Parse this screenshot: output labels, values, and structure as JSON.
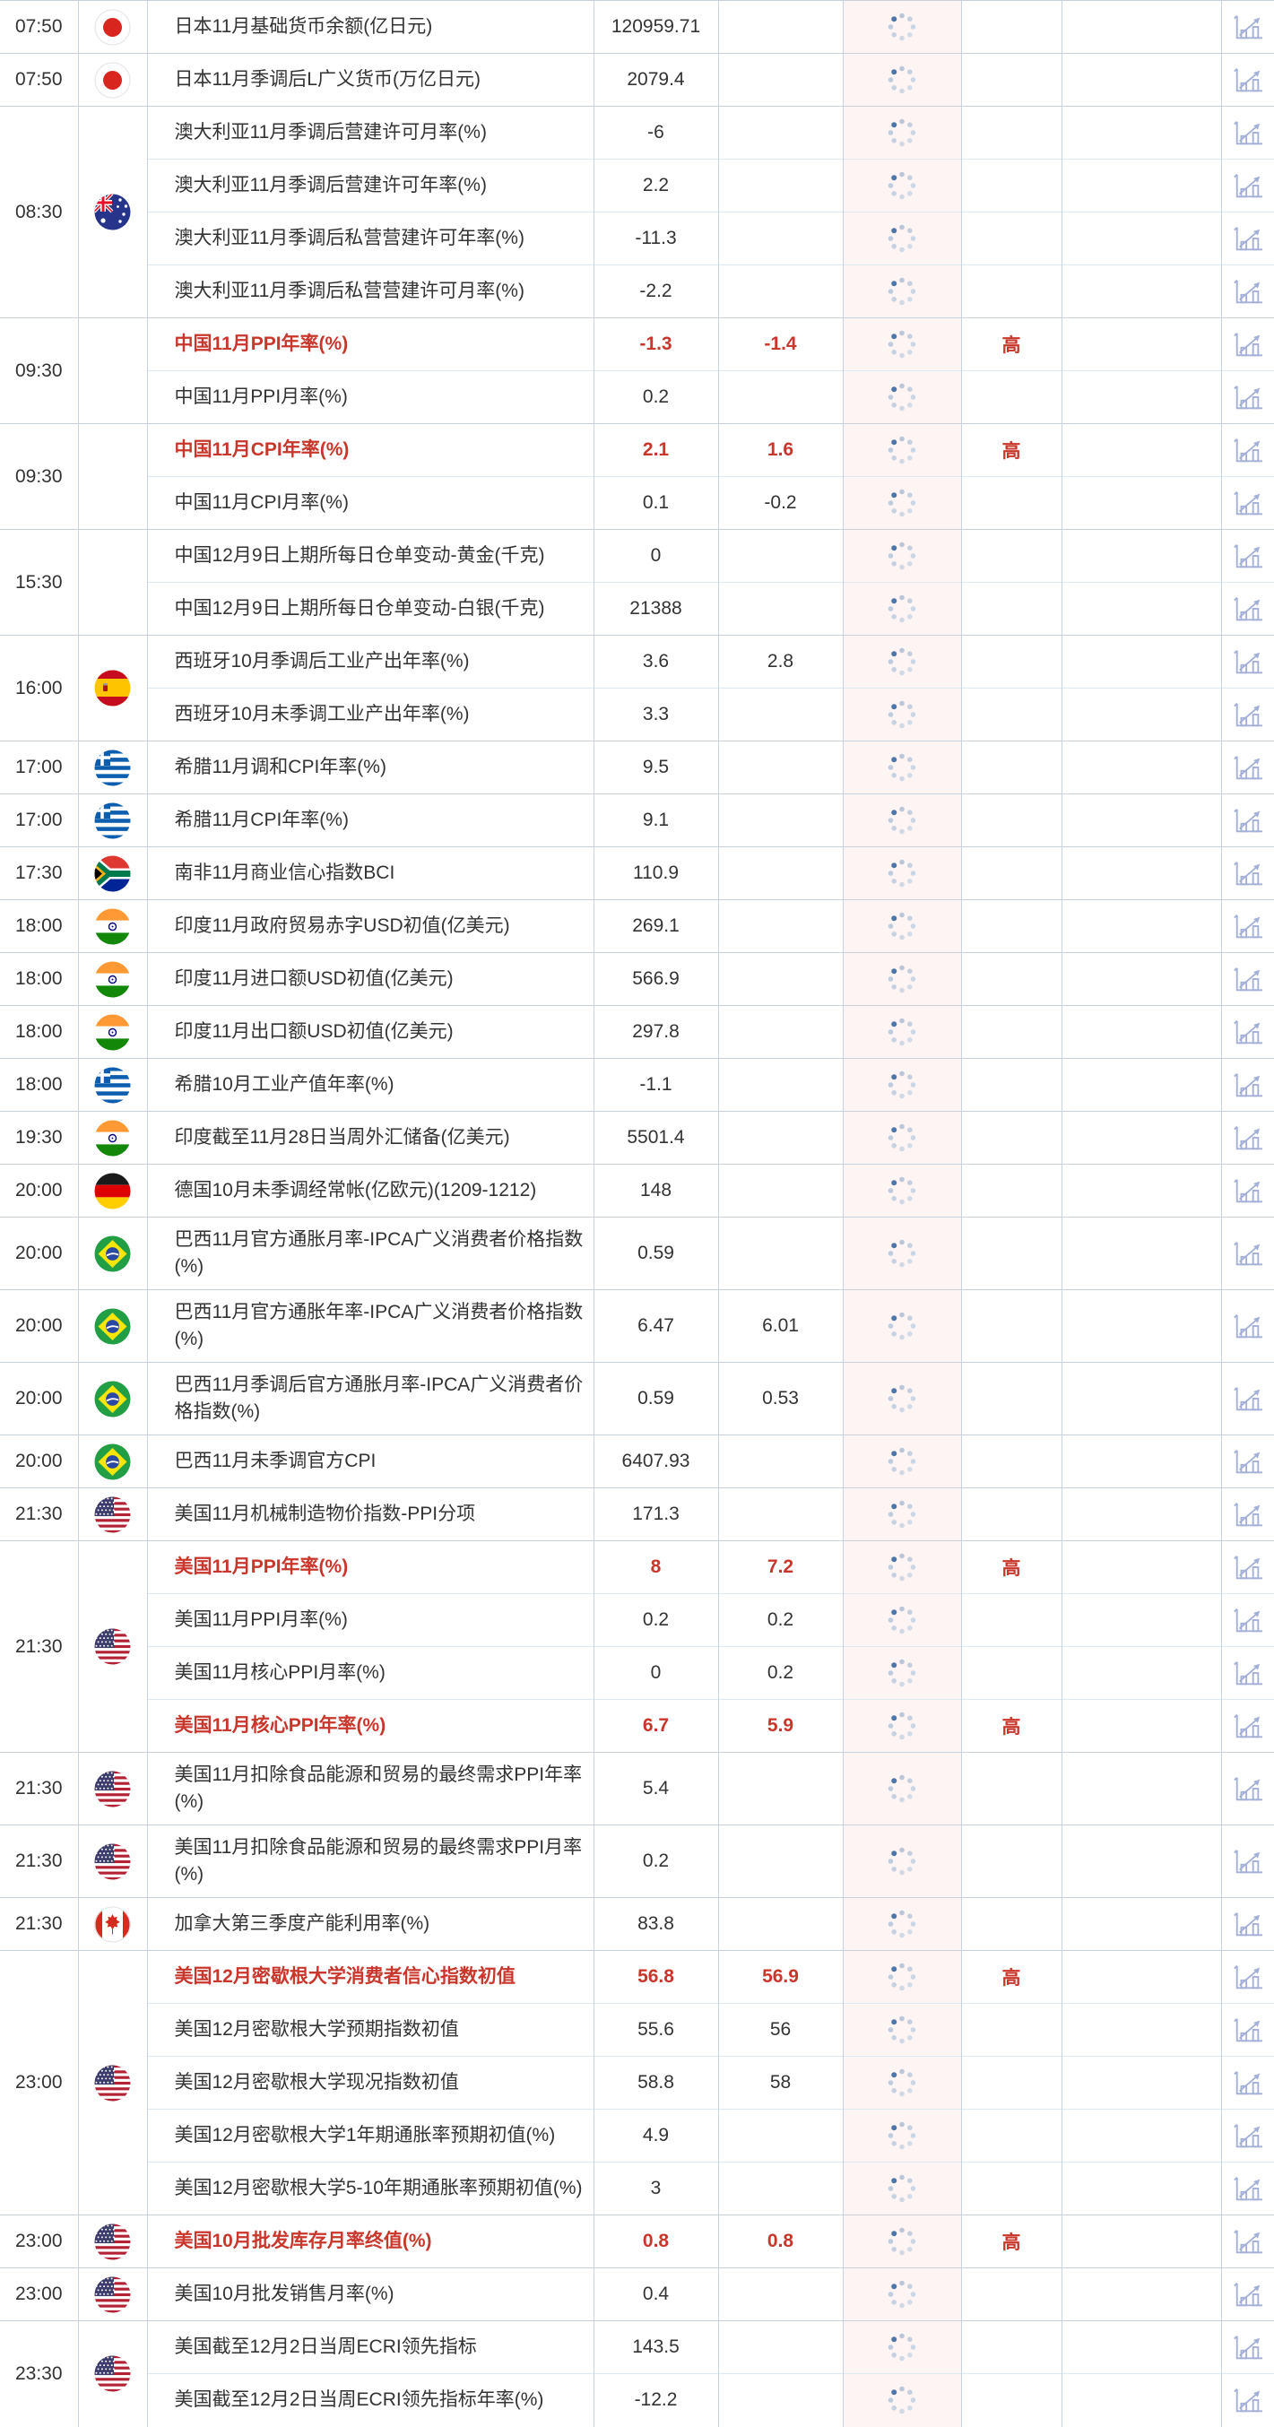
{
  "page": {
    "background": "#ffffff"
  },
  "colors": {
    "text": "#333333",
    "highlight_red": "#c9362b",
    "group_border": "#c9d1dc",
    "row_border": "#dde8f3",
    "column_border": "#c7d3e1",
    "spinner_column_bg": "#fdf4f4",
    "spinner_dark_dot": "#4e76a9",
    "spinner_light_dot": "#c8d4e4",
    "chart_icon": "#a5b0d8"
  },
  "importance_high_label": "高",
  "table": {
    "groups": [
      {
        "time": "07:50",
        "flag": "japan",
        "rows": [
          {
            "name": "日本11月基础货币余额(亿日元)",
            "actual": "120959.71",
            "forecast": "",
            "importance": "",
            "high": false,
            "tall": false
          }
        ]
      },
      {
        "time": "07:50",
        "flag": "japan",
        "rows": [
          {
            "name": "日本11月季调后L广义货币(万亿日元)",
            "actual": "2079.4",
            "forecast": "",
            "importance": "",
            "high": false,
            "tall": false
          }
        ]
      },
      {
        "time": "08:30",
        "flag": "australia",
        "rows": [
          {
            "name": "澳大利亚11月季调后营建许可月率(%)",
            "actual": "-6",
            "forecast": "",
            "importance": "",
            "high": false,
            "tall": false
          },
          {
            "name": "澳大利亚11月季调后营建许可年率(%)",
            "actual": "2.2",
            "forecast": "",
            "importance": "",
            "high": false,
            "tall": false
          },
          {
            "name": "澳大利亚11月季调后私营营建许可年率(%)",
            "actual": "-11.3",
            "forecast": "",
            "importance": "",
            "high": false,
            "tall": false
          },
          {
            "name": "澳大利亚11月季调后私营营建许可月率(%)",
            "actual": "-2.2",
            "forecast": "",
            "importance": "",
            "high": false,
            "tall": false
          }
        ]
      },
      {
        "time": "09:30",
        "flag": "",
        "rows": [
          {
            "name": "中国11月PPI年率(%)",
            "actual": "-1.3",
            "forecast": "-1.4",
            "importance": "高",
            "high": true,
            "tall": false
          },
          {
            "name": "中国11月PPI月率(%)",
            "actual": "0.2",
            "forecast": "",
            "importance": "",
            "high": false,
            "tall": false
          }
        ]
      },
      {
        "time": "09:30",
        "flag": "",
        "rows": [
          {
            "name": "中国11月CPI年率(%)",
            "actual": "2.1",
            "forecast": "1.6",
            "importance": "高",
            "high": true,
            "tall": false
          },
          {
            "name": "中国11月CPI月率(%)",
            "actual": "0.1",
            "forecast": "-0.2",
            "importance": "",
            "high": false,
            "tall": false
          }
        ]
      },
      {
        "time": "15:30",
        "flag": "",
        "rows": [
          {
            "name": "中国12月9日上期所每日仓单变动-黄金(千克)",
            "actual": "0",
            "forecast": "",
            "importance": "",
            "high": false,
            "tall": false
          },
          {
            "name": "中国12月9日上期所每日仓单变动-白银(千克)",
            "actual": "21388",
            "forecast": "",
            "importance": "",
            "high": false,
            "tall": false
          }
        ]
      },
      {
        "time": "16:00",
        "flag": "spain",
        "rows": [
          {
            "name": "西班牙10月季调后工业产出年率(%)",
            "actual": "3.6",
            "forecast": "2.8",
            "importance": "",
            "high": false,
            "tall": false
          },
          {
            "name": "西班牙10月未季调工业产出年率(%)",
            "actual": "3.3",
            "forecast": "",
            "importance": "",
            "high": false,
            "tall": false
          }
        ]
      },
      {
        "time": "17:00",
        "flag": "greece",
        "rows": [
          {
            "name": "希腊11月调和CPI年率(%)",
            "actual": "9.5",
            "forecast": "",
            "importance": "",
            "high": false,
            "tall": false
          }
        ]
      },
      {
        "time": "17:00",
        "flag": "greece",
        "rows": [
          {
            "name": "希腊11月CPI年率(%)",
            "actual": "9.1",
            "forecast": "",
            "importance": "",
            "high": false,
            "tall": false
          }
        ]
      },
      {
        "time": "17:30",
        "flag": "south-africa",
        "rows": [
          {
            "name": "南非11月商业信心指数BCI",
            "actual": "110.9",
            "forecast": "",
            "importance": "",
            "high": false,
            "tall": false
          }
        ]
      },
      {
        "time": "18:00",
        "flag": "india",
        "rows": [
          {
            "name": "印度11月政府贸易赤字USD初值(亿美元)",
            "actual": "269.1",
            "forecast": "",
            "importance": "",
            "high": false,
            "tall": false
          }
        ]
      },
      {
        "time": "18:00",
        "flag": "india",
        "rows": [
          {
            "name": "印度11月进口额USD初值(亿美元)",
            "actual": "566.9",
            "forecast": "",
            "importance": "",
            "high": false,
            "tall": false
          }
        ]
      },
      {
        "time": "18:00",
        "flag": "india",
        "rows": [
          {
            "name": "印度11月出口额USD初值(亿美元)",
            "actual": "297.8",
            "forecast": "",
            "importance": "",
            "high": false,
            "tall": false
          }
        ]
      },
      {
        "time": "18:00",
        "flag": "greece",
        "rows": [
          {
            "name": "希腊10月工业产值年率(%)",
            "actual": "-1.1",
            "forecast": "",
            "importance": "",
            "high": false,
            "tall": false
          }
        ]
      },
      {
        "time": "19:30",
        "flag": "india",
        "rows": [
          {
            "name": "印度截至11月28日当周外汇储备(亿美元)",
            "actual": "5501.4",
            "forecast": "",
            "importance": "",
            "high": false,
            "tall": false
          }
        ]
      },
      {
        "time": "20:00",
        "flag": "germany",
        "rows": [
          {
            "name": "德国10月未季调经常帐(亿欧元)(1209-1212)",
            "actual": "148",
            "forecast": "",
            "importance": "",
            "high": false,
            "tall": false
          }
        ]
      },
      {
        "time": "20:00",
        "flag": "brazil",
        "rows": [
          {
            "name": "巴西11月官方通胀月率-IPCA广义消费者价格指数(%)",
            "actual": "0.59",
            "forecast": "",
            "importance": "",
            "high": false,
            "tall": true
          }
        ]
      },
      {
        "time": "20:00",
        "flag": "brazil",
        "rows": [
          {
            "name": "巴西11月官方通胀年率-IPCA广义消费者价格指数(%)",
            "actual": "6.47",
            "forecast": "6.01",
            "importance": "",
            "high": false,
            "tall": true
          }
        ]
      },
      {
        "time": "20:00",
        "flag": "brazil",
        "rows": [
          {
            "name": "巴西11月季调后官方通胀月率-IPCA广义消费者价格指数(%)",
            "actual": "0.59",
            "forecast": "0.53",
            "importance": "",
            "high": false,
            "tall": true
          }
        ]
      },
      {
        "time": "20:00",
        "flag": "brazil",
        "rows": [
          {
            "name": "巴西11月未季调官方CPI",
            "actual": "6407.93",
            "forecast": "",
            "importance": "",
            "high": false,
            "tall": false
          }
        ]
      },
      {
        "time": "21:30",
        "flag": "usa",
        "rows": [
          {
            "name": "美国11月机械制造物价指数-PPI分项",
            "actual": "171.3",
            "forecast": "",
            "importance": "",
            "high": false,
            "tall": false
          }
        ]
      },
      {
        "time": "21:30",
        "flag": "usa",
        "rows": [
          {
            "name": "美国11月PPI年率(%)",
            "actual": "8",
            "forecast": "7.2",
            "importance": "高",
            "high": true,
            "tall": false
          },
          {
            "name": "美国11月PPI月率(%)",
            "actual": "0.2",
            "forecast": "0.2",
            "importance": "",
            "high": false,
            "tall": false
          },
          {
            "name": "美国11月核心PPI月率(%)",
            "actual": "0",
            "forecast": "0.2",
            "importance": "",
            "high": false,
            "tall": false
          },
          {
            "name": "美国11月核心PPI年率(%)",
            "actual": "6.7",
            "forecast": "5.9",
            "importance": "高",
            "high": true,
            "tall": false
          }
        ]
      },
      {
        "time": "21:30",
        "flag": "usa",
        "rows": [
          {
            "name": "美国11月扣除食品能源和贸易的最终需求PPI年率(%)",
            "actual": "5.4",
            "forecast": "",
            "importance": "",
            "high": false,
            "tall": true
          }
        ]
      },
      {
        "time": "21:30",
        "flag": "usa",
        "rows": [
          {
            "name": "美国11月扣除食品能源和贸易的最终需求PPI月率(%)",
            "actual": "0.2",
            "forecast": "",
            "importance": "",
            "high": false,
            "tall": true
          }
        ]
      },
      {
        "time": "21:30",
        "flag": "canada",
        "rows": [
          {
            "name": "加拿大第三季度产能利用率(%)",
            "actual": "83.8",
            "forecast": "",
            "importance": "",
            "high": false,
            "tall": false
          }
        ]
      },
      {
        "time": "23:00",
        "flag": "usa",
        "rows": [
          {
            "name": "美国12月密歇根大学消费者信心指数初值",
            "actual": "56.8",
            "forecast": "56.9",
            "importance": "高",
            "high": true,
            "tall": false
          },
          {
            "name": "美国12月密歇根大学预期指数初值",
            "actual": "55.6",
            "forecast": "56",
            "importance": "",
            "high": false,
            "tall": false
          },
          {
            "name": "美国12月密歇根大学现况指数初值",
            "actual": "58.8",
            "forecast": "58",
            "importance": "",
            "high": false,
            "tall": false
          },
          {
            "name": "美国12月密歇根大学1年期通胀率预期初值(%)",
            "actual": "4.9",
            "forecast": "",
            "importance": "",
            "high": false,
            "tall": false
          },
          {
            "name": "美国12月密歇根大学5-10年期通胀率预期初值(%)",
            "actual": "3",
            "forecast": "",
            "importance": "",
            "high": false,
            "tall": false
          }
        ]
      },
      {
        "time": "23:00",
        "flag": "usa",
        "rows": [
          {
            "name": "美国10月批发库存月率终值(%)",
            "actual": "0.8",
            "forecast": "0.8",
            "importance": "高",
            "high": true,
            "tall": false
          }
        ]
      },
      {
        "time": "23:00",
        "flag": "usa",
        "rows": [
          {
            "name": "美国10月批发销售月率(%)",
            "actual": "0.4",
            "forecast": "",
            "importance": "",
            "high": false,
            "tall": false
          }
        ]
      },
      {
        "time": "23:30",
        "flag": "usa",
        "rows": [
          {
            "name": "美国截至12月2日当周ECRI领先指标",
            "actual": "143.5",
            "forecast": "",
            "importance": "",
            "high": false,
            "tall": false
          },
          {
            "name": "美国截至12月2日当周ECRI领先指标年率(%)",
            "actual": "-12.2",
            "forecast": "",
            "importance": "",
            "high": false,
            "tall": false
          }
        ]
      }
    ]
  }
}
